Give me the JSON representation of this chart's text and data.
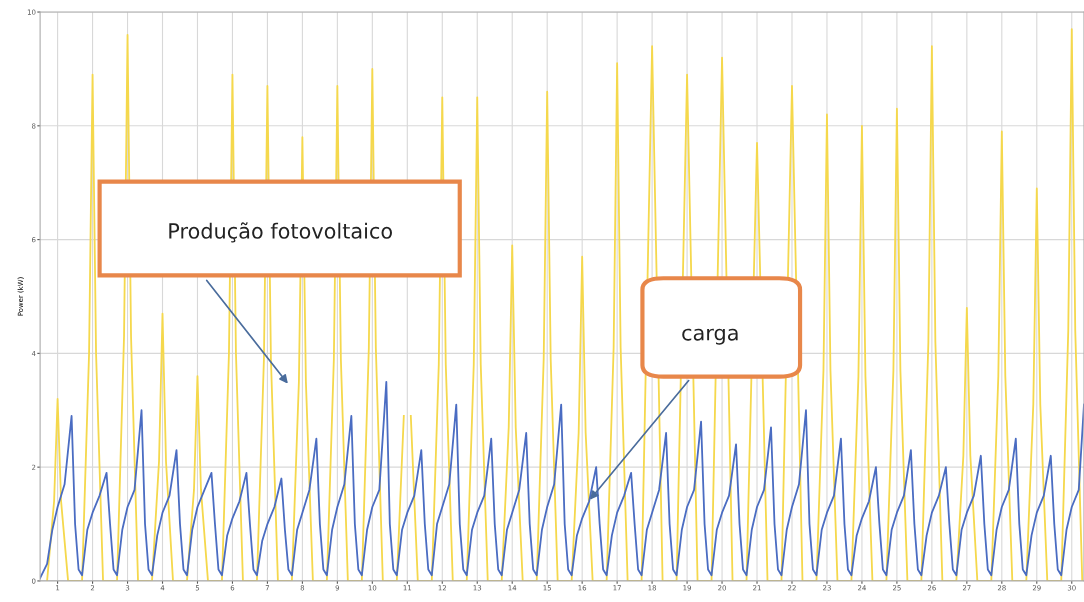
{
  "chart_data": {
    "type": "line",
    "ylabel": "Power (kW)",
    "xlim": [
      0.5,
      30.35
    ],
    "xticks": [
      1,
      2,
      3,
      4,
      5,
      6,
      7,
      8,
      9,
      10,
      11,
      12,
      13,
      14,
      15,
      16,
      17,
      18,
      19,
      20,
      21,
      22,
      23,
      24,
      25,
      26,
      27,
      28,
      29,
      30
    ],
    "ylim": [
      0,
      10
    ],
    "yticks": [
      0,
      2,
      4,
      6,
      8,
      10
    ],
    "grid": true,
    "series": [
      {
        "color": "#f5d84c",
        "x": [
          0.7,
          0.9,
          1,
          1.1,
          1.3,
          1.7,
          1.9,
          2,
          2.1,
          2.3,
          2.7,
          2.9,
          3,
          3.1,
          3.3,
          3.7,
          3.9,
          4,
          4.1,
          4.3,
          4.7,
          4.9,
          5,
          5.1,
          5.3,
          5.7,
          5.9,
          6,
          6.1,
          6.3,
          6.7,
          6.9,
          7,
          7.1,
          7.3,
          7.7,
          7.9,
          8,
          8.1,
          8.3,
          8.7,
          8.9,
          9,
          9.1,
          9.3,
          9.7,
          9.9,
          10,
          10.1,
          10.3,
          10.7,
          10.9,
          11,
          11.1,
          11.3,
          11.7,
          11.9,
          12,
          12.1,
          12.3,
          12.7,
          12.9,
          13,
          13.1,
          13.3,
          13.7,
          13.9,
          14,
          14.1,
          14.3,
          14.7,
          14.9,
          15,
          15.1,
          15.3,
          15.7,
          15.9,
          16,
          16.1,
          16.3,
          16.7,
          16.9,
          17,
          17.1,
          17.3,
          17.7,
          18,
          18.3,
          18.7,
          19,
          19.3,
          19.7,
          20,
          20.3,
          20.7,
          21,
          21.3,
          21.7,
          22,
          22.3,
          22.7,
          22.9,
          23,
          23.1,
          23.3,
          23.7,
          23.9,
          24,
          24.1,
          24.3,
          24.7,
          24.9,
          25,
          25.1,
          25.3,
          25.7,
          25.9,
          26,
          26.1,
          26.3,
          26.7,
          26.9,
          27,
          27.1,
          27.3,
          27.7,
          27.9,
          28,
          28.1,
          28.3,
          28.7,
          28.9,
          29,
          29.1,
          29.3,
          29.7,
          29.9,
          30,
          30.1,
          30.3
        ],
        "values": [
          0,
          1.4,
          3.2,
          1.4,
          0,
          0,
          4.0,
          8.9,
          4.0,
          0,
          0,
          4.3,
          9.6,
          4.3,
          0,
          0,
          2.1,
          4.7,
          2.1,
          0,
          0,
          1.6,
          3.6,
          1.6,
          0,
          0,
          4.0,
          8.9,
          4.0,
          0,
          0,
          3.9,
          8.7,
          3.9,
          0,
          0,
          3.5,
          7.8,
          3.5,
          0,
          0,
          3.9,
          8.7,
          3.9,
          0,
          0,
          4.1,
          9.0,
          4.1,
          0,
          0,
          2.9,
          null,
          2.9,
          0,
          0,
          3.8,
          8.5,
          3.8,
          0,
          0,
          3.8,
          8.5,
          3.8,
          0,
          0,
          2.7,
          5.9,
          2.7,
          0,
          0,
          3.9,
          8.6,
          3.9,
          0,
          0,
          2.6,
          5.7,
          2.6,
          0,
          0,
          4.1,
          9.1,
          4.1,
          0,
          0,
          9.4,
          0,
          0,
          8.9,
          0,
          0,
          9.2,
          0,
          0,
          7.7,
          0,
          0,
          8.7,
          0,
          0,
          3.7,
          8.2,
          3.7,
          0,
          0,
          3.6,
          8.0,
          3.6,
          0,
          0,
          3.7,
          8.3,
          3.7,
          0,
          0,
          4.2,
          9.4,
          4.2,
          0,
          0,
          2.2,
          4.8,
          2.2,
          0,
          0,
          3.6,
          7.9,
          3.6,
          0,
          0,
          3.1,
          6.9,
          3.1,
          0,
          0,
          4.4,
          9.7,
          4.4,
          0
        ]
      },
      {
        "color": "#4a6cc2",
        "x": [
          0.5,
          0.7,
          0.85,
          1,
          1.2,
          1.4,
          1.5,
          1.6,
          1.7,
          1.85,
          2,
          2.2,
          2.4,
          2.5,
          2.6,
          2.7,
          2.85,
          3,
          3.2,
          3.4,
          3.5,
          3.6,
          3.7,
          3.85,
          4,
          4.2,
          4.4,
          4.5,
          4.6,
          4.7,
          4.85,
          5,
          5.2,
          5.4,
          5.5,
          5.6,
          5.7,
          5.85,
          6,
          6.2,
          6.4,
          6.5,
          6.6,
          6.7,
          6.85,
          7,
          7.2,
          7.4,
          7.5,
          7.6,
          7.7,
          7.85,
          8,
          8.2,
          8.4,
          8.5,
          8.6,
          8.7,
          8.85,
          9,
          9.2,
          9.4,
          9.5,
          9.6,
          9.7,
          9.85,
          10,
          10.2,
          10.4,
          10.5,
          10.6,
          10.7,
          10.85,
          11,
          11.2,
          11.4,
          11.5,
          11.6,
          11.7,
          11.85,
          12,
          12.2,
          12.4,
          12.5,
          12.6,
          12.7,
          12.85,
          13,
          13.2,
          13.4,
          13.5,
          13.6,
          13.7,
          13.85,
          14,
          14.2,
          14.4,
          14.5,
          14.6,
          14.7,
          14.85,
          15,
          15.2,
          15.4,
          15.5,
          15.6,
          15.7,
          15.85,
          16,
          16.2,
          16.4,
          16.5,
          16.6,
          16.7,
          16.85,
          17,
          17.2,
          17.4,
          17.5,
          17.6,
          17.7,
          17.85,
          18,
          18.2,
          18.4,
          18.5,
          18.6,
          18.7,
          18.85,
          19,
          19.2,
          19.4,
          19.5,
          19.6,
          19.7,
          19.85,
          20,
          20.2,
          20.4,
          20.5,
          20.6,
          20.7,
          20.85,
          21,
          21.2,
          21.4,
          21.5,
          21.6,
          21.7,
          21.85,
          22,
          22.2,
          22.4,
          22.5,
          22.6,
          22.7,
          22.85,
          23,
          23.2,
          23.4,
          23.5,
          23.6,
          23.7,
          23.85,
          24,
          24.2,
          24.4,
          24.5,
          24.6,
          24.7,
          24.85,
          25,
          25.2,
          25.4,
          25.5,
          25.6,
          25.7,
          25.85,
          26,
          26.2,
          26.4,
          26.5,
          26.6,
          26.7,
          26.85,
          27,
          27.2,
          27.4,
          27.5,
          27.6,
          27.7,
          27.85,
          28,
          28.2,
          28.4,
          28.5,
          28.6,
          28.7,
          28.85,
          29,
          29.2,
          29.4,
          29.5,
          29.6,
          29.7,
          29.85,
          30,
          30.2,
          30.35
        ],
        "values": [
          0.05,
          0.3,
          0.9,
          1.3,
          1.7,
          2.9,
          1.0,
          0.2,
          0.1,
          0.9,
          1.2,
          1.5,
          1.9,
          1.0,
          0.2,
          0.1,
          0.9,
          1.3,
          1.6,
          3.0,
          1.0,
          0.2,
          0.1,
          0.8,
          1.2,
          1.5,
          2.3,
          1.0,
          0.2,
          0.1,
          0.9,
          1.3,
          1.6,
          1.9,
          1.0,
          0.2,
          0.1,
          0.8,
          1.1,
          1.4,
          1.9,
          1.0,
          0.2,
          0.1,
          0.7,
          1.0,
          1.3,
          1.8,
          0.9,
          0.2,
          0.1,
          0.9,
          1.2,
          1.6,
          2.5,
          1.0,
          0.2,
          0.1,
          0.9,
          1.3,
          1.7,
          2.9,
          1.0,
          0.2,
          0.1,
          0.9,
          1.3,
          1.6,
          3.5,
          1.0,
          0.2,
          0.1,
          0.9,
          1.2,
          1.5,
          2.3,
          1.0,
          0.2,
          0.1,
          1.0,
          1.3,
          1.7,
          3.1,
          1.0,
          0.2,
          0.1,
          0.9,
          1.2,
          1.5,
          2.5,
          1.0,
          0.2,
          0.1,
          0.9,
          1.2,
          1.6,
          2.6,
          1.0,
          0.2,
          0.1,
          0.9,
          1.3,
          1.7,
          3.1,
          1.0,
          0.2,
          0.1,
          0.8,
          1.1,
          1.4,
          2.0,
          1.0,
          0.2,
          0.1,
          0.8,
          1.2,
          1.5,
          1.9,
          1.0,
          0.2,
          0.1,
          0.9,
          1.2,
          1.6,
          2.6,
          1.0,
          0.2,
          0.1,
          0.9,
          1.3,
          1.6,
          2.8,
          1.0,
          0.2,
          0.1,
          0.9,
          1.2,
          1.5,
          2.4,
          1.0,
          0.2,
          0.1,
          0.9,
          1.3,
          1.6,
          2.7,
          1.0,
          0.2,
          0.1,
          0.9,
          1.3,
          1.7,
          3.0,
          1.0,
          0.2,
          0.1,
          0.9,
          1.2,
          1.5,
          2.5,
          1.0,
          0.2,
          0.1,
          0.8,
          1.1,
          1.4,
          2.0,
          1.0,
          0.2,
          0.1,
          0.9,
          1.2,
          1.5,
          2.3,
          1.0,
          0.2,
          0.1,
          0.8,
          1.2,
          1.5,
          2.0,
          1.0,
          0.2,
          0.1,
          0.9,
          1.2,
          1.5,
          2.2,
          1.0,
          0.2,
          0.1,
          0.9,
          1.3,
          1.6,
          2.5,
          1.0,
          0.2,
          0.1,
          0.8,
          1.2,
          1.5,
          2.2,
          1.0,
          0.2,
          0.1,
          0.9,
          1.3,
          1.6,
          3.1
        ]
      }
    ],
    "annotations": [
      "Produção fotovoltaico",
      "carga"
    ]
  }
}
